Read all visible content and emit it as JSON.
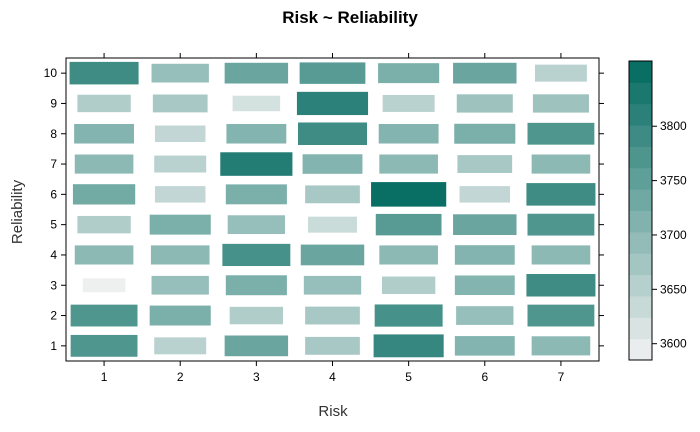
{
  "chart_data": {
    "type": "heatmap",
    "title": "Risk ~ Reliability",
    "xlabel": "Risk",
    "ylabel": "Reliability",
    "x_categories": [
      "1",
      "2",
      "3",
      "4",
      "5",
      "6",
      "7"
    ],
    "y_categories": [
      "1",
      "2",
      "3",
      "4",
      "5",
      "6",
      "7",
      "8",
      "9",
      "10"
    ],
    "values": [
      [
        3770,
        3650,
        3740,
        3670,
        3800,
        3710,
        3700
      ],
      [
        3770,
        3720,
        3660,
        3670,
        3780,
        3690,
        3770
      ],
      [
        3590,
        3690,
        3720,
        3690,
        3660,
        3710,
        3790
      ],
      [
        3700,
        3700,
        3780,
        3740,
        3700,
        3710,
        3700
      ],
      [
        3660,
        3720,
        3690,
        3630,
        3760,
        3740,
        3770
      ],
      [
        3730,
        3640,
        3720,
        3670,
        3850,
        3640,
        3790
      ],
      [
        3700,
        3650,
        3820,
        3710,
        3700,
        3670,
        3700
      ],
      [
        3710,
        3640,
        3710,
        3790,
        3710,
        3720,
        3770
      ],
      [
        3660,
        3670,
        3620,
        3810,
        3650,
        3680,
        3680
      ],
      [
        3790,
        3690,
        3740,
        3760,
        3720,
        3740,
        3650
      ]
    ],
    "color_scale": {
      "min": 3585,
      "max": 3860,
      "low_color": "#f2f2f2",
      "high_color": "#00695f",
      "ticks": [
        "3600",
        "3650",
        "3700",
        "3750",
        "3800"
      ]
    },
    "grid": false,
    "legend_placement": "right"
  }
}
